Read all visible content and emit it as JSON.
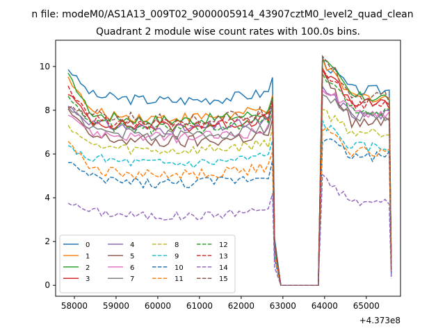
{
  "suptitle": "n file: modeM0/AS1A13_009T02_9000005914_43907cztM0_level2_quad_clean",
  "chart_data": {
    "type": "line",
    "title": "Quadrant 2 module wise count rates with 100.0s bins.",
    "xlabel": "",
    "ylabel": "",
    "x_offset_label": "+4.373e8",
    "xlim": [
      57550,
      65820
    ],
    "ylim": [
      -0.5,
      11.2
    ],
    "xticks": [
      58000,
      59000,
      60000,
      61000,
      62000,
      63000,
      64000,
      65000
    ],
    "yticks": [
      0,
      2,
      4,
      6,
      8,
      10
    ],
    "grid": false,
    "legend_position": "lower-left",
    "legend_columns": 4,
    "x_ranges": [
      [
        57850,
        62750
      ],
      [
        62950,
        63750
      ],
      [
        63950,
        65550
      ]
    ],
    "gap": {
      "start": 62850,
      "end": 63850,
      "value": 0
    },
    "series": [
      {
        "name": "0",
        "color": "#1f77b4",
        "dash": "solid",
        "base": 8.6,
        "first": 9.9,
        "peak": 10.3,
        "post": 8.9,
        "amp": 0.25,
        "end": 0.7
      },
      {
        "name": "1",
        "color": "#ff7f0e",
        "dash": "solid",
        "base": 7.8,
        "first": 9.5,
        "peak": 10.1,
        "post": 8.6,
        "amp": 0.25,
        "end": 0.8
      },
      {
        "name": "2",
        "color": "#2ca02c",
        "dash": "solid",
        "base": 7.7,
        "first": 9.6,
        "peak": 10.4,
        "post": 8.6,
        "amp": 0.25,
        "end": 0.9
      },
      {
        "name": "3",
        "color": "#d62728",
        "dash": "solid",
        "base": 7.4,
        "first": 8.8,
        "peak": 9.9,
        "post": 8.3,
        "amp": 0.25,
        "end": 0.6
      },
      {
        "name": "4",
        "color": "#9467bd",
        "dash": "solid",
        "base": 7.3,
        "first": 8.2,
        "peak": 9.0,
        "post": 7.8,
        "amp": 0.25,
        "end": 0.6
      },
      {
        "name": "5",
        "color": "#8c564b",
        "dash": "solid",
        "base": 6.7,
        "first": 8.0,
        "peak": 9.7,
        "post": 7.4,
        "amp": 0.3,
        "end": 0.6
      },
      {
        "name": "6",
        "color": "#e377c2",
        "dash": "solid",
        "base": 6.9,
        "first": 7.9,
        "peak": 9.1,
        "post": 7.9,
        "amp": 0.25,
        "end": 0.6
      },
      {
        "name": "7",
        "color": "#7f7f7f",
        "dash": "solid",
        "base": 7.0,
        "first": 8.2,
        "peak": 8.8,
        "post": 7.7,
        "amp": 0.25,
        "end": 0.6
      },
      {
        "name": "8",
        "color": "#bcbd22",
        "dash": "dashed",
        "base": 6.3,
        "first": 7.3,
        "peak": 8.0,
        "post": 7.0,
        "amp": 0.25,
        "end": 0.5
      },
      {
        "name": "9",
        "color": "#17becf",
        "dash": "dashed",
        "base": 5.7,
        "first": 6.3,
        "peak": 7.4,
        "post": 6.3,
        "amp": 0.25,
        "end": 0.5
      },
      {
        "name": "10",
        "color": "#1f77b4",
        "dash": "dashed",
        "base": 4.8,
        "first": 5.7,
        "peak": 6.8,
        "post": 5.9,
        "amp": 0.25,
        "end": 0.4
      },
      {
        "name": "11",
        "color": "#ff7f0e",
        "dash": "dashed",
        "base": 5.2,
        "first": 6.6,
        "peak": 7.2,
        "post": 6.1,
        "amp": 0.25,
        "end": 0.5
      },
      {
        "name": "12",
        "color": "#2ca02c",
        "dash": "dashed",
        "base": 7.3,
        "first": 8.6,
        "peak": 9.7,
        "post": 8.0,
        "amp": 0.25,
        "end": 0.7
      },
      {
        "name": "13",
        "color": "#d62728",
        "dash": "dashed",
        "base": 7.5,
        "first": 9.0,
        "peak": 9.8,
        "post": 8.3,
        "amp": 0.25,
        "end": 0.7
      },
      {
        "name": "14",
        "color": "#9467bd",
        "dash": "dashed",
        "base": 3.3,
        "first": 3.8,
        "peak": 4.9,
        "post": 3.8,
        "amp": 0.2,
        "end": 0.3
      },
      {
        "name": "15",
        "color": "#8c564b",
        "dash": "dashed",
        "base": 7.7,
        "first": 8.1,
        "peak": 10.7,
        "post": 8.6,
        "amp": 0.3,
        "end": 0.6
      }
    ]
  }
}
